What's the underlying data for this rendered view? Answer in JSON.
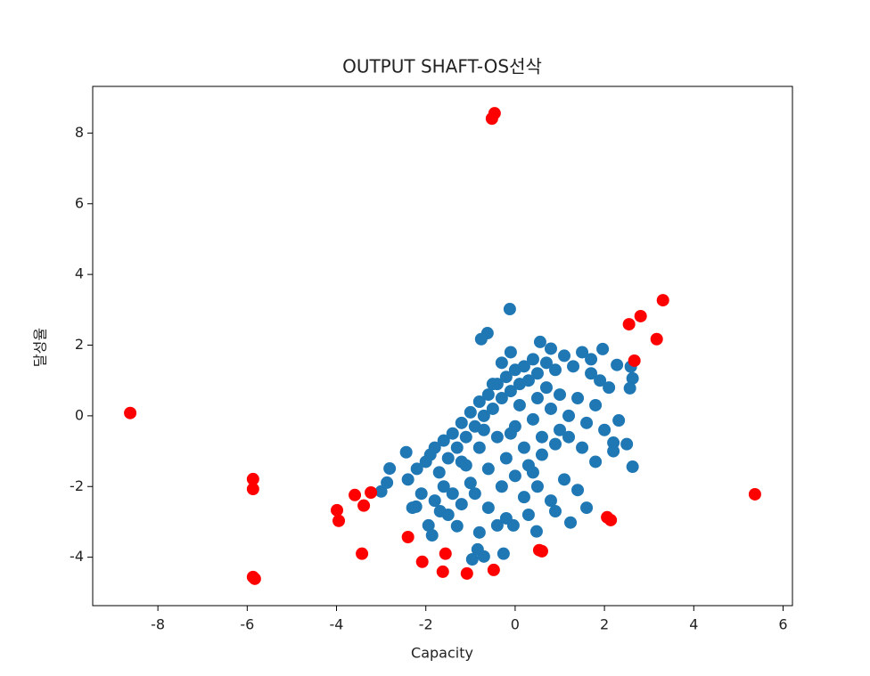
{
  "chart_data": {
    "type": "scatter",
    "title": "OUTPUT SHAFT-OS선삭",
    "x_label": "Capacity",
    "y_label": "달성율",
    "xlim": [
      -9.46,
      6.21
    ],
    "ylim": [
      -5.37,
      9.32
    ],
    "xticks": [
      -8,
      -6,
      -4,
      -2,
      0,
      2,
      4,
      6
    ],
    "yticks": [
      -4,
      -2,
      0,
      2,
      4,
      6,
      8
    ],
    "series": [
      {
        "color": "#1f77b4",
        "x": [
          -0.12,
          -0.62,
          -0.76,
          0.56,
          1.96,
          2.28,
          2.59,
          2.63,
          2.57,
          2.63,
          2.2,
          2.32,
          1.24,
          0.48,
          -0.04,
          -0.26,
          -0.84,
          -0.96,
          -0.7,
          -1.3,
          -1.68,
          -1.94,
          -1.86,
          -2.22,
          -3.0,
          -2.81,
          -2.44,
          -2.87,
          -2.4,
          -2.2,
          -2.0,
          -1.9,
          -1.8,
          -1.7,
          -1.6,
          -1.5,
          -1.4,
          -1.3,
          -1.2,
          -1.1,
          -1.0,
          -0.9,
          -0.8,
          -0.7,
          -0.6,
          -0.5,
          -0.4,
          -0.3,
          -0.2,
          -0.1,
          0.0,
          0.1,
          0.2,
          0.3,
          0.4,
          0.5,
          0.7,
          0.9,
          1.1,
          1.3,
          1.5,
          1.7,
          1.9,
          2.1,
          1.8,
          1.6,
          1.4,
          1.2,
          1.0,
          0.8,
          0.6,
          0.4,
          0.2,
          0.0,
          -0.2,
          -0.4,
          -0.6,
          -0.8,
          -1.0,
          -1.2,
          -1.4,
          -1.6,
          -1.8,
          -2.1,
          -2.3,
          -1.5,
          -1.2,
          -0.9,
          -0.6,
          -0.3,
          0.0,
          0.3,
          0.6,
          0.9,
          1.2,
          1.5,
          1.8,
          2.2,
          2.5,
          2.0,
          0.2,
          0.5,
          0.8,
          1.1,
          1.4,
          1.6,
          0.9,
          -0.4,
          -0.8,
          -0.2,
          0.3,
          -0.5,
          -0.3,
          0.1,
          -0.1,
          0.5,
          0.7,
          1.0,
          -0.7,
          -1.1,
          0.4,
          -0.1,
          0.8,
          1.7
        ],
        "y": [
          3.02,
          2.34,
          2.17,
          2.09,
          1.89,
          1.44,
          1.39,
          1.06,
          0.78,
          -1.44,
          -0.76,
          -0.13,
          -3.02,
          -3.27,
          -3.1,
          -3.9,
          -3.78,
          -4.06,
          -3.98,
          -3.12,
          -2.7,
          -3.1,
          -3.38,
          -2.57,
          -2.14,
          -1.49,
          -1.03,
          -1.89,
          -1.8,
          -1.5,
          -1.3,
          -1.1,
          -0.9,
          -1.6,
          -0.7,
          -1.2,
          -0.5,
          -0.9,
          -0.2,
          -0.6,
          0.1,
          -0.3,
          0.4,
          0.0,
          0.6,
          0.2,
          0.9,
          0.5,
          1.1,
          0.7,
          1.3,
          0.9,
          1.4,
          1.0,
          1.6,
          1.2,
          1.5,
          1.3,
          1.7,
          1.4,
          1.8,
          1.2,
          1.0,
          0.8,
          0.3,
          -0.2,
          0.5,
          0.0,
          -0.4,
          0.2,
          -0.6,
          -0.1,
          -0.9,
          -0.3,
          -1.2,
          -0.6,
          -1.5,
          -0.9,
          -1.9,
          -1.3,
          -2.2,
          -2.0,
          -2.4,
          -2.2,
          -2.6,
          -2.8,
          -2.5,
          -2.2,
          -2.6,
          -2.0,
          -1.7,
          -1.4,
          -1.1,
          -0.8,
          -0.6,
          -0.9,
          -1.3,
          -1.0,
          -0.8,
          -0.4,
          -2.3,
          -2.0,
          -2.4,
          -1.8,
          -2.1,
          -2.6,
          -2.7,
          -3.1,
          -3.3,
          -2.9,
          -2.8,
          0.9,
          1.5,
          0.3,
          -0.5,
          0.5,
          0.8,
          0.6,
          -0.4,
          -1.4,
          -1.6,
          1.8,
          1.9,
          1.6
        ]
      },
      {
        "color": "#ff0000",
        "x": [
          -8.62,
          -5.87,
          -5.87,
          -5.87,
          -5.83,
          -3.59,
          -3.23,
          -3.99,
          -3.95,
          -3.39,
          -3.43,
          -2.4,
          -2.08,
          -1.56,
          -1.62,
          -1.08,
          -0.48,
          -0.52,
          -0.46,
          0.54,
          0.6,
          2.06,
          2.14,
          2.67,
          2.55,
          2.81,
          3.17,
          3.31,
          5.37
        ],
        "y": [
          0.08,
          -1.79,
          -2.07,
          -4.56,
          -4.61,
          -2.24,
          -2.17,
          -2.67,
          -2.97,
          -2.54,
          -3.9,
          -3.43,
          -4.13,
          -3.9,
          -4.41,
          -4.46,
          -4.36,
          8.41,
          8.56,
          -3.8,
          -3.83,
          -2.87,
          -2.95,
          1.56,
          2.59,
          2.82,
          2.17,
          3.27,
          -2.22
        ]
      }
    ]
  }
}
